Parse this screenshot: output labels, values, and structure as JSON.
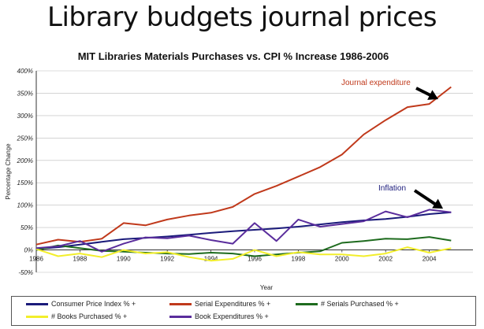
{
  "slide_title": "Library budgets journal prices",
  "chart_data": {
    "type": "line",
    "title": "MIT Libraries Materials Purchases  vs. CPI % Increase 1986-2006",
    "xlabel": "Year",
    "ylabel": "Percentage Change",
    "x": [
      1986,
      1987,
      1988,
      1989,
      1990,
      1991,
      1992,
      1993,
      1994,
      1995,
      1996,
      1997,
      1998,
      1999,
      2000,
      2001,
      2002,
      2003,
      2004,
      2005
    ],
    "xticks": [
      1986,
      1988,
      1990,
      1992,
      1994,
      1996,
      1998,
      2000,
      2002,
      2004
    ],
    "xlim": [
      1986,
      2006
    ],
    "yticks": [
      -50,
      0,
      50,
      100,
      150,
      200,
      250,
      300,
      350,
      400
    ],
    "ytick_labels": [
      "-50%",
      "0%",
      "50%",
      "100%",
      "150%",
      "200%",
      "250%",
      "300%",
      "350%",
      "400%"
    ],
    "ylim": [
      -50,
      400
    ],
    "grid": "horizontal",
    "legend_position": "bottom",
    "series": [
      {
        "name": "Consumer Price Index % +",
        "color": "#1a1a7a",
        "values": [
          2,
          6,
          12,
          18,
          24,
          27,
          30,
          34,
          38,
          42,
          45,
          48,
          52,
          57,
          62,
          66,
          69,
          74,
          80,
          84
        ]
      },
      {
        "name": "Serial Expenditures % +",
        "color": "#c0391b",
        "values": [
          12,
          23,
          18,
          25,
          60,
          55,
          68,
          77,
          83,
          96,
          125,
          143,
          164,
          185,
          213,
          258,
          290,
          319,
          326,
          364
        ]
      },
      {
        "name": "# Serials Purchased % +",
        "color": "#1e6b1e",
        "values": [
          0,
          10,
          4,
          -2,
          -4,
          -6,
          -8,
          -9,
          -6,
          -8,
          -14,
          -10,
          -6,
          -3,
          16,
          20,
          25,
          24,
          29,
          21
        ]
      },
      {
        "name": "# Books Purchased % +",
        "color": "#f2ee2b",
        "values": [
          2,
          -14,
          -8,
          -16,
          0,
          -8,
          -5,
          -16,
          -24,
          -20,
          0,
          -14,
          -5,
          -10,
          -10,
          -14,
          -8,
          6,
          -6,
          4
        ]
      },
      {
        "name": "Book Expenditures % +",
        "color": "#5a2d9c",
        "values": [
          4,
          8,
          20,
          -4,
          14,
          28,
          26,
          32,
          22,
          14,
          60,
          20,
          68,
          52,
          58,
          64,
          86,
          73,
          90,
          84
        ]
      }
    ],
    "annotations": [
      {
        "text": "Journal expenditure",
        "color": "#c0391b",
        "target_x": 2004,
        "target_y": 330
      },
      {
        "text": "Inflation",
        "color": "#1a1a7a",
        "target_x": 2004,
        "target_y": 86
      }
    ]
  }
}
